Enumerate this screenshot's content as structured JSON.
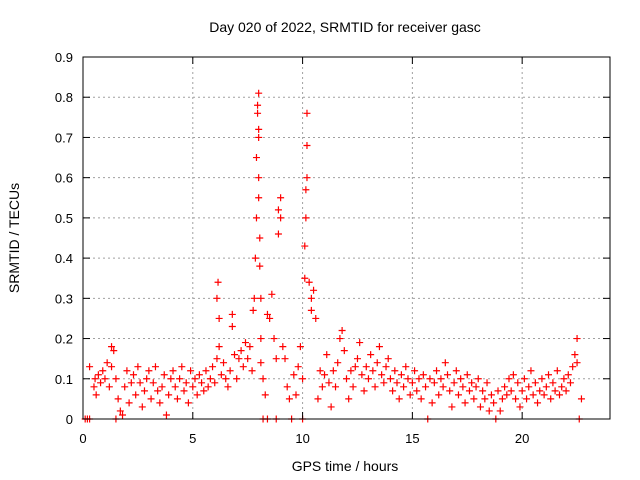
{
  "chart_data": {
    "type": "scatter",
    "title": "Day 020 of 2022, SRMTID for receiver gasc",
    "xlabel": "GPS time / hours",
    "ylabel": "SRMTID / TECUs",
    "xlim": [
      0,
      24
    ],
    "ylim": [
      0,
      0.9
    ],
    "grid": true,
    "x_ticks": [
      0,
      5,
      10,
      15,
      20
    ],
    "x_tick_labels": [
      "0",
      "5",
      "10",
      "15",
      "20"
    ],
    "y_ticks": [
      0,
      0.1,
      0.2,
      0.3,
      0.4,
      0.5,
      0.6,
      0.7,
      0.8,
      0.9
    ],
    "y_tick_labels": [
      "0",
      "0.1",
      "0.2",
      "0.3",
      "0.4",
      "0.5",
      "0.6",
      "0.7",
      "0.8",
      "0.9"
    ],
    "marker": "+",
    "color": "#ff0000",
    "series": [
      {
        "name": "SRMTID",
        "points": [
          [
            0.1,
            0.0
          ],
          [
            0.2,
            0.0
          ],
          [
            0.3,
            0.0
          ],
          [
            0.3,
            0.13
          ],
          [
            0.5,
            0.08
          ],
          [
            0.55,
            0.1
          ],
          [
            0.6,
            0.06
          ],
          [
            0.7,
            0.11
          ],
          [
            0.8,
            0.09
          ],
          [
            0.9,
            0.12
          ],
          [
            1.0,
            0.1
          ],
          [
            1.1,
            0.14
          ],
          [
            1.2,
            0.08
          ],
          [
            1.3,
            0.13
          ],
          [
            1.3,
            0.18
          ],
          [
            1.4,
            0.17
          ],
          [
            1.5,
            0.1
          ],
          [
            1.6,
            0.05
          ],
          [
            1.7,
            0.02
          ],
          [
            1.5,
            0.0
          ],
          [
            1.8,
            0.01
          ],
          [
            1.9,
            0.08
          ],
          [
            2.0,
            0.12
          ],
          [
            2.1,
            0.04
          ],
          [
            2.2,
            0.09
          ],
          [
            2.3,
            0.11
          ],
          [
            2.4,
            0.06
          ],
          [
            2.5,
            0.13
          ],
          [
            2.6,
            0.09
          ],
          [
            2.7,
            0.03
          ],
          [
            2.8,
            0.07
          ],
          [
            2.9,
            0.1
          ],
          [
            3.0,
            0.12
          ],
          [
            3.1,
            0.05
          ],
          [
            3.2,
            0.09
          ],
          [
            3.3,
            0.13
          ],
          [
            3.4,
            0.07
          ],
          [
            3.5,
            0.04
          ],
          [
            3.6,
            0.08
          ],
          [
            3.7,
            0.11
          ],
          [
            3.8,
            0.01
          ],
          [
            3.9,
            0.06
          ],
          [
            4.0,
            0.1
          ],
          [
            4.1,
            0.12
          ],
          [
            4.2,
            0.08
          ],
          [
            4.3,
            0.05
          ],
          [
            4.4,
            0.1
          ],
          [
            4.5,
            0.13
          ],
          [
            4.6,
            0.07
          ],
          [
            4.7,
            0.09
          ],
          [
            4.8,
            0.04
          ],
          [
            4.9,
            0.12
          ],
          [
            5.0,
            0.08
          ],
          [
            5.1,
            0.1
          ],
          [
            5.2,
            0.06
          ],
          [
            5.3,
            0.11
          ],
          [
            5.4,
            0.09
          ],
          [
            5.5,
            0.07
          ],
          [
            5.6,
            0.12
          ],
          [
            5.7,
            0.08
          ],
          [
            5.8,
            0.1
          ],
          [
            5.9,
            0.13
          ],
          [
            6.0,
            0.09
          ],
          [
            6.1,
            0.15
          ],
          [
            6.1,
            0.3
          ],
          [
            6.15,
            0.34
          ],
          [
            6.2,
            0.25
          ],
          [
            6.2,
            0.18
          ],
          [
            6.3,
            0.11
          ],
          [
            6.4,
            0.14
          ],
          [
            6.5,
            0.1
          ],
          [
            6.6,
            0.08
          ],
          [
            6.7,
            0.12
          ],
          [
            6.8,
            0.23
          ],
          [
            6.8,
            0.26
          ],
          [
            6.9,
            0.16
          ],
          [
            7.0,
            0.1
          ],
          [
            7.1,
            0.15
          ],
          [
            7.2,
            0.17
          ],
          [
            7.3,
            0.13
          ],
          [
            7.4,
            0.19
          ],
          [
            7.5,
            0.15
          ],
          [
            7.6,
            0.18
          ],
          [
            7.7,
            0.12
          ],
          [
            7.75,
            0.27
          ],
          [
            7.8,
            0.3
          ],
          [
            7.85,
            0.4
          ],
          [
            7.9,
            0.5
          ],
          [
            7.9,
            0.65
          ],
          [
            7.95,
            0.78
          ],
          [
            8.0,
            0.81
          ],
          [
            7.95,
            0.76
          ],
          [
            8.0,
            0.72
          ],
          [
            8.0,
            0.7
          ],
          [
            8.0,
            0.6
          ],
          [
            8.0,
            0.55
          ],
          [
            8.05,
            0.45
          ],
          [
            8.05,
            0.38
          ],
          [
            8.1,
            0.3
          ],
          [
            8.1,
            0.2
          ],
          [
            8.1,
            0.14
          ],
          [
            8.2,
            0.1
          ],
          [
            8.3,
            0.06
          ],
          [
            8.4,
            0.0
          ],
          [
            8.2,
            0.0
          ],
          [
            8.4,
            0.26
          ],
          [
            8.5,
            0.25
          ],
          [
            8.6,
            0.31
          ],
          [
            8.7,
            0.2
          ],
          [
            8.8,
            0.15
          ],
          [
            8.8,
            0.0
          ],
          [
            8.9,
            0.46
          ],
          [
            8.9,
            0.52
          ],
          [
            9.0,
            0.55
          ],
          [
            9.0,
            0.5
          ],
          [
            9.1,
            0.18
          ],
          [
            9.2,
            0.15
          ],
          [
            9.3,
            0.08
          ],
          [
            9.4,
            0.05
          ],
          [
            9.5,
            0.0
          ],
          [
            9.6,
            0.11
          ],
          [
            9.7,
            0.06
          ],
          [
            9.8,
            0.13
          ],
          [
            9.9,
            0.18
          ],
          [
            10.0,
            0.1
          ],
          [
            10.0,
            0.0
          ],
          [
            10.1,
            0.35
          ],
          [
            10.1,
            0.43
          ],
          [
            10.15,
            0.5
          ],
          [
            10.15,
            0.57
          ],
          [
            10.2,
            0.6
          ],
          [
            10.2,
            0.68
          ],
          [
            10.2,
            0.76
          ],
          [
            10.3,
            0.34
          ],
          [
            10.4,
            0.3
          ],
          [
            10.4,
            0.27
          ],
          [
            10.5,
            0.32
          ],
          [
            10.6,
            0.25
          ],
          [
            10.7,
            0.05
          ],
          [
            10.8,
            0.12
          ],
          [
            10.9,
            0.08
          ],
          [
            11.0,
            0.11
          ],
          [
            11.1,
            0.16
          ],
          [
            11.2,
            0.09
          ],
          [
            11.3,
            0.03
          ],
          [
            11.4,
            0.12
          ],
          [
            11.5,
            0.08
          ],
          [
            11.6,
            0.14
          ],
          [
            11.7,
            0.2
          ],
          [
            11.8,
            0.22
          ],
          [
            11.9,
            0.17
          ],
          [
            12.0,
            0.1
          ],
          [
            12.1,
            0.05
          ],
          [
            12.2,
            0.12
          ],
          [
            12.3,
            0.08
          ],
          [
            12.4,
            0.13
          ],
          [
            12.5,
            0.15
          ],
          [
            12.6,
            0.19
          ],
          [
            12.7,
            0.11
          ],
          [
            12.8,
            0.07
          ],
          [
            12.9,
            0.13
          ],
          [
            13.0,
            0.1
          ],
          [
            13.1,
            0.16
          ],
          [
            13.2,
            0.12
          ],
          [
            13.3,
            0.08
          ],
          [
            13.4,
            0.14
          ],
          [
            13.5,
            0.18
          ],
          [
            13.6,
            0.11
          ],
          [
            13.7,
            0.09
          ],
          [
            13.8,
            0.13
          ],
          [
            13.9,
            0.15
          ],
          [
            14.0,
            0.1
          ],
          [
            14.1,
            0.07
          ],
          [
            14.2,
            0.12
          ],
          [
            14.3,
            0.09
          ],
          [
            14.4,
            0.05
          ],
          [
            14.5,
            0.11
          ],
          [
            14.6,
            0.08
          ],
          [
            14.7,
            0.13
          ],
          [
            14.8,
            0.1
          ],
          [
            14.9,
            0.06
          ],
          [
            15.0,
            0.09
          ],
          [
            15.1,
            0.12
          ],
          [
            15.2,
            0.07
          ],
          [
            15.3,
            0.1
          ],
          [
            15.4,
            0.05
          ],
          [
            15.5,
            0.11
          ],
          [
            15.6,
            0.08
          ],
          [
            15.7,
            0.0
          ],
          [
            15.8,
            0.1
          ],
          [
            15.9,
            0.04
          ],
          [
            16.0,
            0.09
          ],
          [
            16.1,
            0.12
          ],
          [
            16.2,
            0.06
          ],
          [
            16.3,
            0.1
          ],
          [
            16.4,
            0.08
          ],
          [
            16.5,
            0.14
          ],
          [
            16.6,
            0.11
          ],
          [
            16.7,
            0.07
          ],
          [
            16.8,
            0.03
          ],
          [
            16.9,
            0.09
          ],
          [
            17.0,
            0.12
          ],
          [
            17.1,
            0.06
          ],
          [
            17.2,
            0.1
          ],
          [
            17.3,
            0.08
          ],
          [
            17.4,
            0.04
          ],
          [
            17.5,
            0.11
          ],
          [
            17.6,
            0.07
          ],
          [
            17.7,
            0.09
          ],
          [
            17.8,
            0.05
          ],
          [
            17.9,
            0.08
          ],
          [
            18.0,
            0.1
          ],
          [
            18.1,
            0.03
          ],
          [
            18.2,
            0.07
          ],
          [
            18.3,
            0.05
          ],
          [
            18.4,
            0.09
          ],
          [
            18.5,
            0.02
          ],
          [
            18.6,
            0.06
          ],
          [
            18.7,
            0.04
          ],
          [
            18.8,
            0.0
          ],
          [
            18.9,
            0.07
          ],
          [
            19.0,
            0.02
          ],
          [
            19.1,
            0.05
          ],
          [
            19.2,
            0.08
          ],
          [
            19.3,
            0.06
          ],
          [
            19.4,
            0.1
          ],
          [
            19.5,
            0.07
          ],
          [
            19.6,
            0.11
          ],
          [
            19.7,
            0.05
          ],
          [
            19.8,
            0.09
          ],
          [
            19.9,
            0.03
          ],
          [
            20.0,
            0.07
          ],
          [
            20.1,
            0.1
          ],
          [
            20.2,
            0.05
          ],
          [
            20.3,
            0.08
          ],
          [
            20.4,
            0.12
          ],
          [
            20.5,
            0.06
          ],
          [
            20.6,
            0.09
          ],
          [
            20.7,
            0.04
          ],
          [
            20.8,
            0.07
          ],
          [
            20.9,
            0.1
          ],
          [
            21.0,
            0.06
          ],
          [
            21.1,
            0.08
          ],
          [
            21.2,
            0.11
          ],
          [
            21.3,
            0.05
          ],
          [
            21.4,
            0.09
          ],
          [
            21.5,
            0.07
          ],
          [
            21.6,
            0.12
          ],
          [
            21.7,
            0.06
          ],
          [
            21.8,
            0.08
          ],
          [
            21.9,
            0.1
          ],
          [
            22.0,
            0.07
          ],
          [
            22.1,
            0.11
          ],
          [
            22.2,
            0.09
          ],
          [
            22.3,
            0.13
          ],
          [
            22.4,
            0.16
          ],
          [
            22.5,
            0.2
          ],
          [
            22.5,
            0.14
          ],
          [
            22.6,
            0.0
          ],
          [
            22.7,
            0.05
          ]
        ]
      }
    ]
  }
}
